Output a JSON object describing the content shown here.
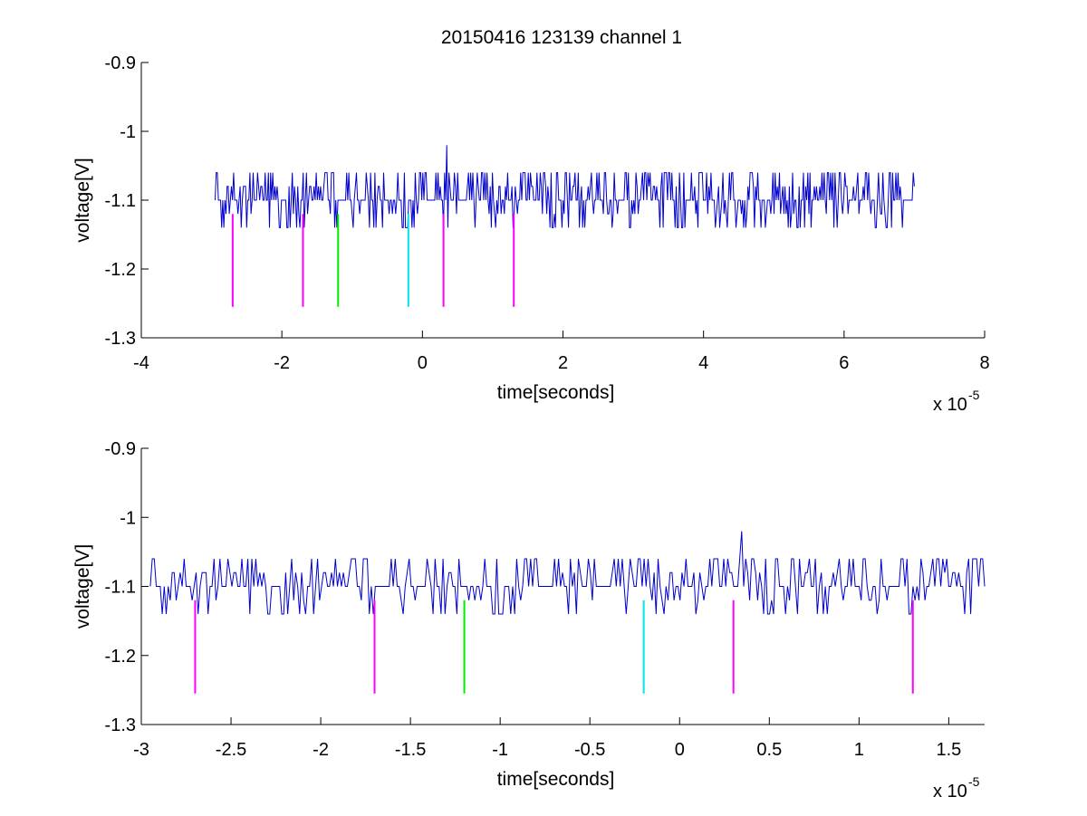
{
  "figure": {
    "title": "20150416 123139 channel 1"
  },
  "colors": {
    "signal": "#0000cc",
    "magenta": "#ff00ff",
    "green": "#00ee00",
    "cyan": "#00e5e5",
    "axis": "#000000"
  },
  "chart_data": [
    {
      "type": "line",
      "title": "20150416 123139 channel 1",
      "xlabel": "time[seconds]",
      "ylabel": "voltage[V]",
      "x_multiplier": "x 10",
      "x_exponent": "-5",
      "xlim": [
        -4e-05,
        8e-05
      ],
      "ylim": [
        -1.3,
        -0.9
      ],
      "xticks": [
        -4e-05,
        -2e-05,
        0,
        2e-05,
        4e-05,
        6e-05,
        8e-05
      ],
      "xtick_labels": [
        "-4",
        "-2",
        "0",
        "2",
        "4",
        "6",
        "8"
      ],
      "yticks": [
        -1.3,
        -1.2,
        -1.1,
        -1.0,
        -0.9
      ],
      "ytick_labels": [
        "-1.3",
        "-1.2",
        "-1.1",
        "-1",
        "-0.9"
      ],
      "grid": false,
      "series": [
        {
          "style": "line",
          "color": "signal",
          "x_range": [
            -2.95e-05,
            7e-05
          ],
          "baseline": -1.1,
          "levels": [
            -1.14,
            -1.12,
            -1.1,
            -1.08,
            -1.06
          ],
          "spike": {
            "x": 3.5e-06,
            "y": -1.02
          }
        }
      ],
      "markers": [
        {
          "x": -2.7e-05,
          "y_top": -1.12,
          "y_bottom": -1.255,
          "color": "magenta"
        },
        {
          "x": -1.7e-05,
          "y_top": -1.12,
          "y_bottom": -1.255,
          "color": "magenta"
        },
        {
          "x": -1.2e-05,
          "y_top": -1.12,
          "y_bottom": -1.255,
          "color": "green"
        },
        {
          "x": -2e-06,
          "y_top": -1.12,
          "y_bottom": -1.255,
          "color": "cyan"
        },
        {
          "x": 3e-06,
          "y_top": -1.12,
          "y_bottom": -1.255,
          "color": "magenta"
        },
        {
          "x": 1.3e-05,
          "y_top": -1.12,
          "y_bottom": -1.255,
          "color": "magenta"
        }
      ]
    },
    {
      "type": "line",
      "xlabel": "time[seconds]",
      "ylabel": "voltage[V]",
      "x_multiplier": "x 10",
      "x_exponent": "-5",
      "xlim": [
        -3e-05,
        1.7e-05
      ],
      "ylim": [
        -1.3,
        -0.9
      ],
      "xticks": [
        -3e-05,
        -2.5e-05,
        -2e-05,
        -1.5e-05,
        -1e-05,
        -5e-06,
        0,
        5e-06,
        1e-05,
        1.5e-05
      ],
      "xtick_labels": [
        "-3",
        "-2.5",
        "-2",
        "-1.5",
        "-1",
        "-0.5",
        "0",
        "0.5",
        "1",
        "1.5"
      ],
      "yticks": [
        -1.3,
        -1.2,
        -1.1,
        -1.0,
        -0.9
      ],
      "ytick_labels": [
        "-1.3",
        "-1.2",
        "-1.1",
        "-1",
        "-0.9"
      ],
      "grid": false,
      "series": [
        {
          "style": "line",
          "color": "signal",
          "x_range": [
            -2.95e-05,
            1.7e-05
          ],
          "baseline": -1.1,
          "levels": [
            -1.14,
            -1.12,
            -1.1,
            -1.08,
            -1.06
          ],
          "spike": {
            "x": 3.5e-06,
            "y": -1.02
          }
        }
      ],
      "markers": [
        {
          "x": -2.7e-05,
          "y_top": -1.12,
          "y_bottom": -1.255,
          "color": "magenta"
        },
        {
          "x": -1.7e-05,
          "y_top": -1.12,
          "y_bottom": -1.255,
          "color": "magenta"
        },
        {
          "x": -1.2e-05,
          "y_top": -1.12,
          "y_bottom": -1.255,
          "color": "green"
        },
        {
          "x": -2e-06,
          "y_top": -1.12,
          "y_bottom": -1.255,
          "color": "cyan"
        },
        {
          "x": 3e-06,
          "y_top": -1.12,
          "y_bottom": -1.255,
          "color": "magenta"
        },
        {
          "x": 1.3e-05,
          "y_top": -1.12,
          "y_bottom": -1.255,
          "color": "magenta"
        }
      ]
    }
  ]
}
